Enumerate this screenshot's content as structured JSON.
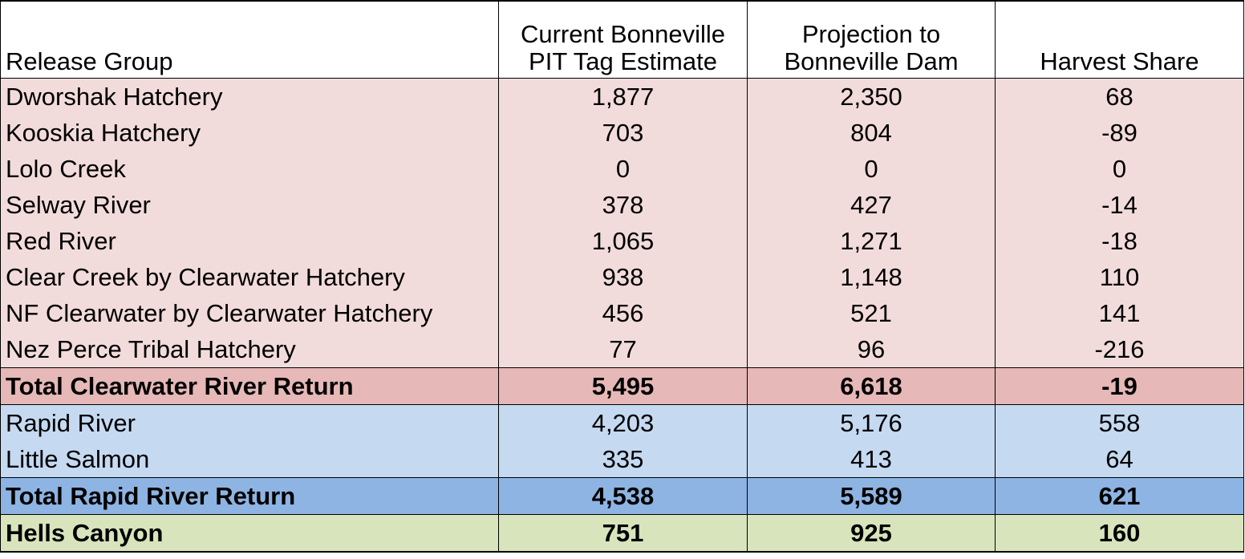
{
  "table": {
    "headers": [
      {
        "line1": "",
        "line2": "Release Group"
      },
      {
        "line1": "Current Bonneville",
        "line2": "PIT Tag Estimate"
      },
      {
        "line1": "Projection to",
        "line2": "Bonneville Dam"
      },
      {
        "line1": "",
        "line2": "Harvest Share"
      }
    ],
    "clearwater_rows": [
      {
        "group": "Dworshak Hatchery",
        "pit": "1,877",
        "projection": "2,350",
        "harvest": "68"
      },
      {
        "group": "Kooskia Hatchery",
        "pit": "703",
        "projection": "804",
        "harvest": "-89"
      },
      {
        "group": "Lolo Creek",
        "pit": "0",
        "projection": "0",
        "harvest": "0"
      },
      {
        "group": "Selway River",
        "pit": "378",
        "projection": "427",
        "harvest": "-14"
      },
      {
        "group": "Red River",
        "pit": "1,065",
        "projection": "1,271",
        "harvest": "-18"
      },
      {
        "group": "Clear Creek by Clearwater Hatchery",
        "pit": "938",
        "projection": "1,148",
        "harvest": "110"
      },
      {
        "group": "NF Clearwater by Clearwater Hatchery",
        "pit": "456",
        "projection": "521",
        "harvest": "141"
      },
      {
        "group": "Nez Perce Tribal Hatchery",
        "pit": "77",
        "projection": "96",
        "harvest": "-216"
      }
    ],
    "clearwater_total": {
      "group": "Total Clearwater River Return",
      "pit": "5,495",
      "projection": "6,618",
      "harvest": "-19"
    },
    "rapid_rows": [
      {
        "group": "Rapid River",
        "pit": "4,203",
        "projection": "5,176",
        "harvest": "558"
      },
      {
        "group": "Little Salmon",
        "pit": "335",
        "projection": "413",
        "harvest": "64"
      }
    ],
    "rapid_total": {
      "group": "Total Rapid River Return",
      "pit": "4,538",
      "projection": "5,589",
      "harvest": "621"
    },
    "hells_canyon": {
      "group": "Hells Canyon",
      "pit": "751",
      "projection": "925",
      "harvest": "160"
    }
  }
}
